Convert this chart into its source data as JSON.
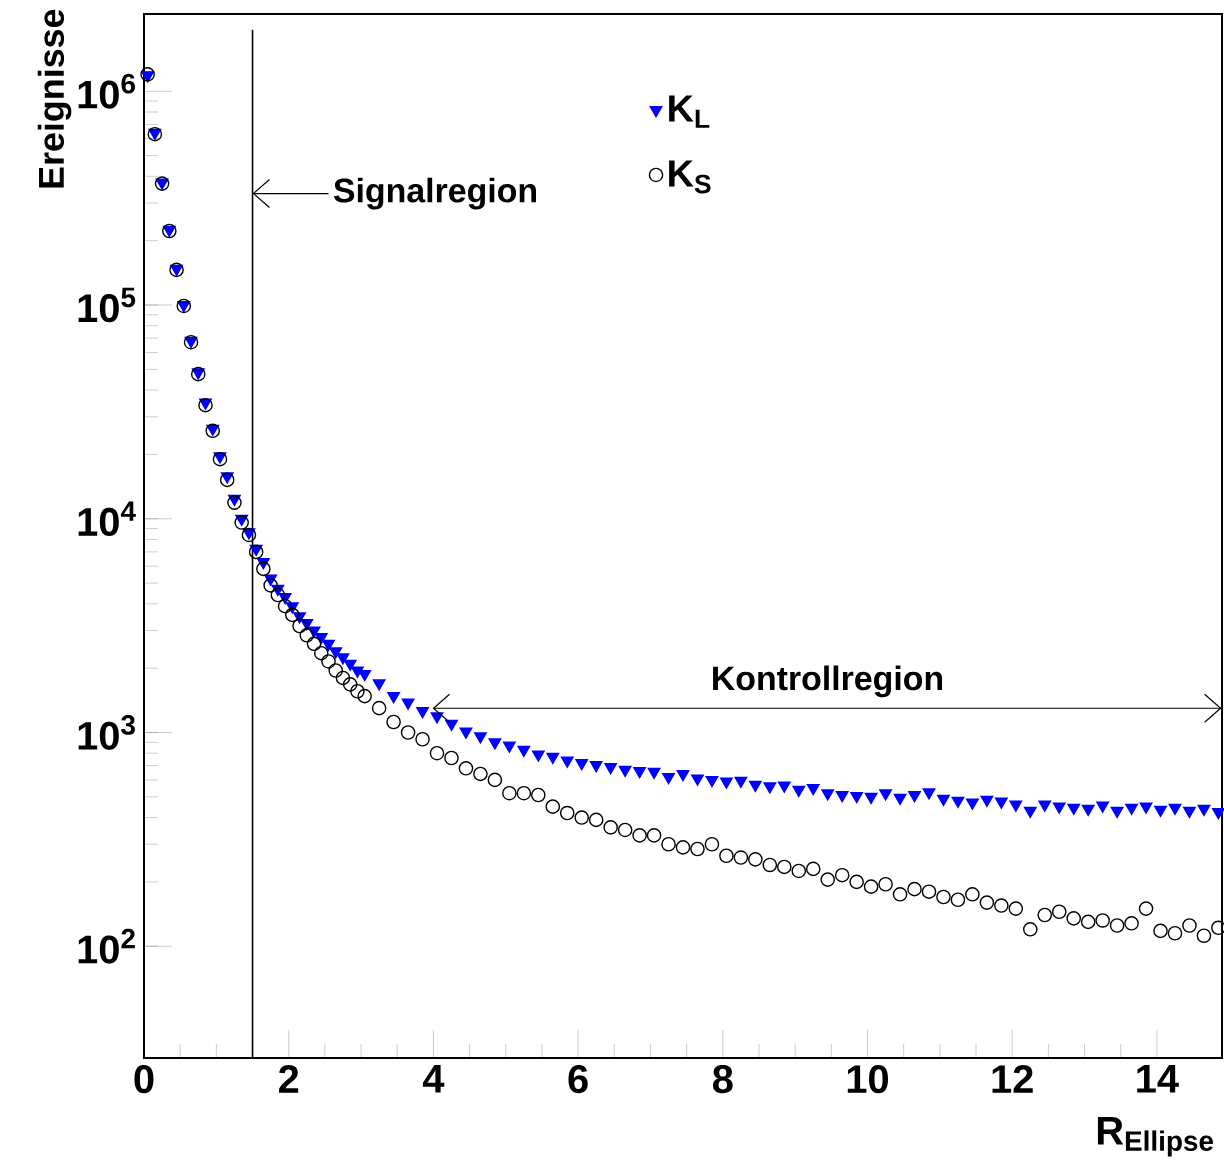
{
  "chart_data": {
    "type": "scatter",
    "ylabel": "Ereignisse",
    "xlabel": "R$_{Ellipse}$",
    "xlim": [
      0,
      14.9
    ],
    "xticks": [
      0,
      2,
      4,
      6,
      8,
      10,
      12,
      14
    ],
    "ylim": [
      30,
      2300000
    ],
    "log": "y",
    "yticks": [
      {
        "value": 100,
        "label": "10$^{2}$"
      },
      {
        "value": 1000,
        "label": "10$^{3}$"
      },
      {
        "value": 10000,
        "label": "10$^{4}$"
      },
      {
        "value": 100000,
        "label": "10$^{5}$"
      },
      {
        "value": 1000000,
        "label": "10$^{6}$"
      }
    ],
    "legend": "top",
    "grid": false,
    "x": [
      0.05,
      0.15,
      0.25,
      0.35,
      0.45,
      0.55,
      0.65,
      0.75,
      0.85,
      0.95,
      1.05,
      1.15,
      1.25,
      1.35,
      1.45,
      1.55,
      1.65,
      1.75,
      1.85,
      1.95,
      2.05,
      2.15,
      2.25,
      2.35,
      2.45,
      2.55,
      2.65,
      2.75,
      2.85,
      2.95,
      3.05,
      3.25,
      3.45,
      3.65,
      3.85,
      4.05,
      4.25,
      4.45,
      4.65,
      4.85,
      5.05,
      5.25,
      5.45,
      5.65,
      5.85,
      6.05,
      6.25,
      6.45,
      6.65,
      6.85,
      7.05,
      7.25,
      7.45,
      7.65,
      7.85,
      8.05,
      8.25,
      8.45,
      8.65,
      8.85,
      9.05,
      9.25,
      9.45,
      9.65,
      9.85,
      10.05,
      10.25,
      10.45,
      10.65,
      10.85,
      11.05,
      11.25,
      11.45,
      11.65,
      11.85,
      12.05,
      12.25,
      12.45,
      12.65,
      12.85,
      13.05,
      13.25,
      13.45,
      13.65,
      13.85,
      14.05,
      14.25,
      14.45,
      14.65,
      14.85
    ],
    "series": [
      {
        "name": "K$_{L}$",
        "color": "#0000ff",
        "marker": "triangle",
        "values": [
          1190000,
          640000,
          374000,
          225000,
          148000,
          100000,
          68000,
          48500,
          35000,
          26400,
          19600,
          15800,
          12400,
          10000,
          8650,
          7240,
          6270,
          5250,
          4700,
          4300,
          3900,
          3500,
          3250,
          3000,
          2800,
          2600,
          2400,
          2250,
          2100,
          1950,
          1880,
          1700,
          1480,
          1380,
          1260,
          1190,
          1100,
          1010,
          960,
          900,
          870,
          830,
          790,
          770,
          740,
          720,
          705,
          690,
          670,
          660,
          655,
          620,
          640,
          610,
          600,
          590,
          595,
          570,
          560,
          565,
          540,
          550,
          520,
          510,
          505,
          500,
          520,
          495,
          510,
          525,
          490,
          480,
          470,
          485,
          475,
          460,
          430,
          460,
          450,
          445,
          440,
          455,
          430,
          445,
          450,
          435,
          445,
          430,
          440,
          425
        ]
      },
      {
        "name": "K$_{S}$",
        "color": "#000000",
        "marker": "circle",
        "values": [
          1200000,
          630000,
          370000,
          222000,
          146000,
          99000,
          67000,
          47500,
          34000,
          25800,
          19000,
          15200,
          11900,
          9600,
          8400,
          7000,
          5830,
          4880,
          4400,
          3900,
          3550,
          3150,
          2850,
          2600,
          2350,
          2150,
          1950,
          1800,
          1680,
          1560,
          1480,
          1300,
          1120,
          1000,
          930,
          800,
          760,
          680,
          640,
          600,
          520,
          520,
          510,
          450,
          420,
          400,
          390,
          360,
          350,
          330,
          330,
          300,
          290,
          285,
          300,
          265,
          260,
          255,
          240,
          235,
          225,
          230,
          205,
          215,
          200,
          190,
          195,
          175,
          185,
          180,
          170,
          165,
          175,
          160,
          155,
          150,
          120,
          140,
          145,
          135,
          130,
          132,
          125,
          128,
          150,
          118,
          115,
          125,
          112,
          122
        ]
      }
    ],
    "ref_lines": [
      {
        "axis": "x",
        "value": 1.5,
        "label": "Signalregion"
      }
    ],
    "annotations": [
      "Kontrollregion"
    ]
  }
}
